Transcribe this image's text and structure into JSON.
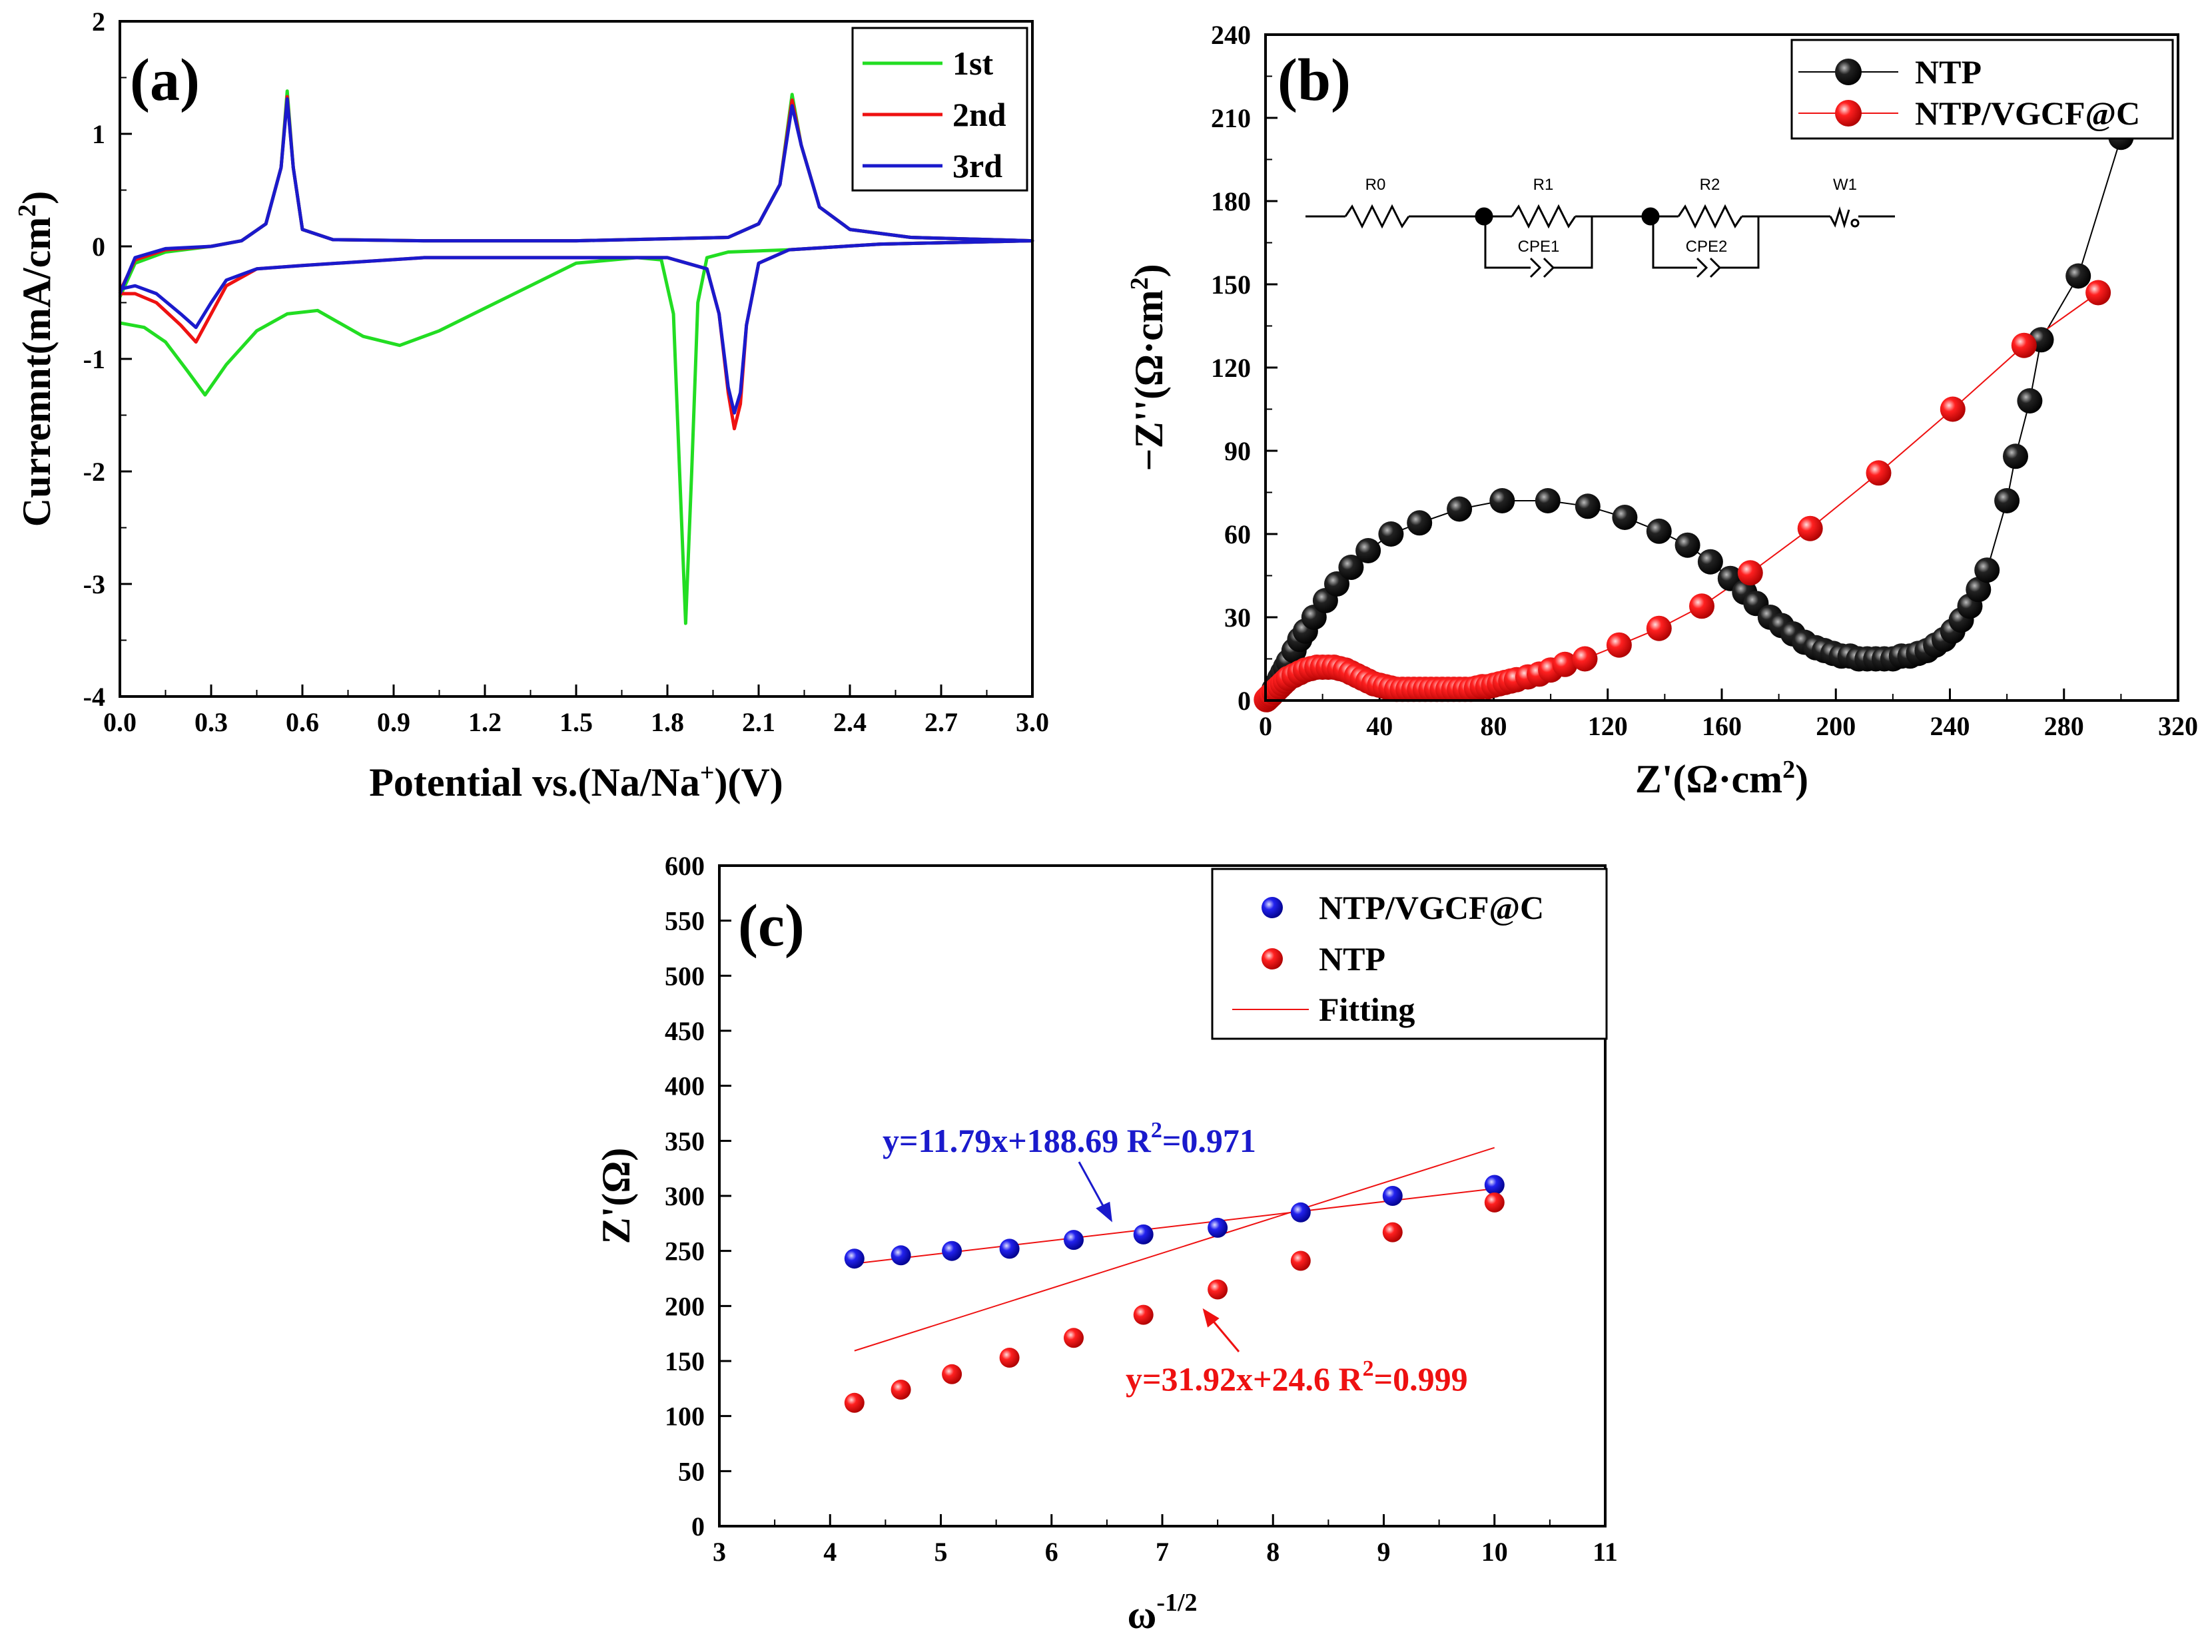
{
  "figure": {
    "colors": {
      "green": "#22dd22",
      "red": "#ee1111",
      "blue": "#1a1acc",
      "black": "#000000"
    }
  },
  "chart_data": [
    {
      "id": "a",
      "panel_label": "(a)",
      "type": "line",
      "xlabel_parts": [
        "Potential vs.(Na/Na",
        "+",
        ")(V)"
      ],
      "ylabel_parts": [
        "Curremnt(mA/cm",
        "2",
        ")"
      ],
      "xlim": [
        0.0,
        3.0
      ],
      "ylim": [
        -4,
        2
      ],
      "xticks": [
        "0.0",
        "0.3",
        "0.6",
        "0.9",
        "1.2",
        "1.5",
        "1.8",
        "2.1",
        "2.4",
        "2.7",
        "3.0"
      ],
      "yticks": [
        "-4",
        "-3",
        "-2",
        "-1",
        "0",
        "1",
        "2"
      ],
      "legend": [
        "1st",
        "2nd",
        "3rd"
      ],
      "series": [
        {
          "name": "1st",
          "color": "#22dd22",
          "oxidation": [
            [
              0.0,
              -0.45
            ],
            [
              0.05,
              -0.15
            ],
            [
              0.15,
              -0.05
            ],
            [
              0.3,
              0.0
            ],
            [
              0.4,
              0.05
            ],
            [
              0.48,
              0.2
            ],
            [
              0.53,
              0.7
            ],
            [
              0.55,
              1.38
            ],
            [
              0.57,
              0.7
            ],
            [
              0.6,
              0.15
            ],
            [
              0.7,
              0.06
            ],
            [
              1.0,
              0.05
            ],
            [
              1.5,
              0.05
            ],
            [
              2.0,
              0.08
            ],
            [
              2.1,
              0.2
            ],
            [
              2.17,
              0.55
            ],
            [
              2.21,
              1.35
            ],
            [
              2.24,
              0.9
            ],
            [
              2.3,
              0.35
            ],
            [
              2.4,
              0.15
            ],
            [
              2.6,
              0.08
            ],
            [
              3.0,
              0.05
            ]
          ],
          "reduction": [
            [
              3.0,
              0.05
            ],
            [
              2.5,
              0.02
            ],
            [
              2.2,
              -0.03
            ],
            [
              2.0,
              -0.05
            ],
            [
              1.93,
              -0.1
            ],
            [
              1.9,
              -0.5
            ],
            [
              1.88,
              -2.0
            ],
            [
              1.86,
              -3.35
            ],
            [
              1.84,
              -2.0
            ],
            [
              1.82,
              -0.6
            ],
            [
              1.78,
              -0.12
            ],
            [
              1.7,
              -0.1
            ],
            [
              1.5,
              -0.15
            ],
            [
              1.2,
              -0.55
            ],
            [
              1.05,
              -0.75
            ],
            [
              0.92,
              -0.88
            ],
            [
              0.8,
              -0.8
            ],
            [
              0.65,
              -0.57
            ],
            [
              0.55,
              -0.6
            ],
            [
              0.45,
              -0.75
            ],
            [
              0.35,
              -1.05
            ],
            [
              0.28,
              -1.32
            ],
            [
              0.22,
              -1.1
            ],
            [
              0.15,
              -0.85
            ],
            [
              0.08,
              -0.72
            ],
            [
              0.0,
              -0.68
            ]
          ]
        },
        {
          "name": "2nd",
          "color": "#ee1111",
          "oxidation": [
            [
              0.0,
              -0.4
            ],
            [
              0.05,
              -0.12
            ],
            [
              0.15,
              -0.03
            ],
            [
              0.3,
              0.0
            ],
            [
              0.4,
              0.05
            ],
            [
              0.48,
              0.2
            ],
            [
              0.53,
              0.7
            ],
            [
              0.55,
              1.33
            ],
            [
              0.57,
              0.7
            ],
            [
              0.6,
              0.15
            ],
            [
              0.7,
              0.06
            ],
            [
              1.0,
              0.05
            ],
            [
              1.5,
              0.05
            ],
            [
              2.0,
              0.08
            ],
            [
              2.1,
              0.2
            ],
            [
              2.17,
              0.55
            ],
            [
              2.21,
              1.3
            ],
            [
              2.24,
              0.9
            ],
            [
              2.3,
              0.35
            ],
            [
              2.4,
              0.15
            ],
            [
              2.6,
              0.08
            ],
            [
              3.0,
              0.05
            ]
          ],
          "reduction": [
            [
              3.0,
              0.05
            ],
            [
              2.5,
              0.02
            ],
            [
              2.2,
              -0.03
            ],
            [
              2.1,
              -0.15
            ],
            [
              2.06,
              -0.7
            ],
            [
              2.04,
              -1.4
            ],
            [
              2.02,
              -1.62
            ],
            [
              2.0,
              -1.3
            ],
            [
              1.97,
              -0.6
            ],
            [
              1.93,
              -0.2
            ],
            [
              1.8,
              -0.1
            ],
            [
              1.5,
              -0.1
            ],
            [
              1.0,
              -0.1
            ],
            [
              0.6,
              -0.17
            ],
            [
              0.45,
              -0.2
            ],
            [
              0.35,
              -0.35
            ],
            [
              0.3,
              -0.6
            ],
            [
              0.25,
              -0.85
            ],
            [
              0.2,
              -0.7
            ],
            [
              0.12,
              -0.5
            ],
            [
              0.05,
              -0.42
            ],
            [
              0.0,
              -0.42
            ]
          ]
        },
        {
          "name": "3rd",
          "color": "#1a1acc",
          "oxidation": [
            [
              0.0,
              -0.42
            ],
            [
              0.05,
              -0.1
            ],
            [
              0.15,
              -0.02
            ],
            [
              0.3,
              0.0
            ],
            [
              0.4,
              0.05
            ],
            [
              0.48,
              0.2
            ],
            [
              0.53,
              0.7
            ],
            [
              0.55,
              1.31
            ],
            [
              0.57,
              0.7
            ],
            [
              0.6,
              0.15
            ],
            [
              0.7,
              0.06
            ],
            [
              1.0,
              0.05
            ],
            [
              1.5,
              0.05
            ],
            [
              2.0,
              0.08
            ],
            [
              2.1,
              0.2
            ],
            [
              2.17,
              0.55
            ],
            [
              2.21,
              1.25
            ],
            [
              2.24,
              0.9
            ],
            [
              2.3,
              0.35
            ],
            [
              2.4,
              0.15
            ],
            [
              2.6,
              0.08
            ],
            [
              3.0,
              0.05
            ]
          ],
          "reduction": [
            [
              3.0,
              0.05
            ],
            [
              2.5,
              0.02
            ],
            [
              2.2,
              -0.03
            ],
            [
              2.1,
              -0.15
            ],
            [
              2.06,
              -0.7
            ],
            [
              2.04,
              -1.3
            ],
            [
              2.02,
              -1.48
            ],
            [
              2.0,
              -1.25
            ],
            [
              1.97,
              -0.6
            ],
            [
              1.93,
              -0.2
            ],
            [
              1.8,
              -0.1
            ],
            [
              1.5,
              -0.1
            ],
            [
              1.0,
              -0.1
            ],
            [
              0.6,
              -0.17
            ],
            [
              0.45,
              -0.2
            ],
            [
              0.35,
              -0.3
            ],
            [
              0.3,
              -0.5
            ],
            [
              0.25,
              -0.72
            ],
            [
              0.2,
              -0.6
            ],
            [
              0.12,
              -0.42
            ],
            [
              0.05,
              -0.35
            ],
            [
              0.0,
              -0.38
            ]
          ]
        }
      ]
    },
    {
      "id": "b",
      "panel_label": "(b)",
      "type": "scatter",
      "xlabel_parts": [
        "Z'(Ω·cm",
        "2",
        ")"
      ],
      "ylabel_parts": [
        "−Z''(Ω·cm",
        "2",
        ")"
      ],
      "xlim": [
        0,
        320
      ],
      "ylim": [
        0,
        240
      ],
      "xticks": [
        "0",
        "40",
        "80",
        "120",
        "160",
        "200",
        "240",
        "280",
        "320"
      ],
      "yticks": [
        "0",
        "30",
        "60",
        "90",
        "120",
        "150",
        "180",
        "210",
        "240"
      ],
      "legend": [
        "NTP",
        "NTP/VGCF@C"
      ],
      "circuit_labels": [
        "R0",
        "R1",
        "R2",
        "W1",
        "CPE1",
        "CPE2"
      ],
      "series": [
        {
          "name": "NTP",
          "color": "#000000",
          "x": [
            0.5,
            1,
            2,
            3,
            4,
            5,
            6,
            7,
            8,
            10,
            12,
            14,
            17,
            21,
            25,
            30,
            36,
            44,
            54,
            68,
            83,
            99,
            113,
            126,
            138,
            148,
            156,
            163,
            168,
            172,
            177,
            181,
            185,
            189,
            193,
            196,
            199,
            202,
            205,
            208,
            211,
            214,
            217,
            220,
            223,
            226,
            229,
            232,
            235,
            238,
            241,
            244,
            247,
            250,
            253,
            260,
            263,
            268,
            272,
            285,
            300
          ],
          "y": [
            0.5,
            1,
            2,
            4,
            6,
            8,
            10,
            12,
            14,
            18,
            22,
            25,
            30,
            36,
            42,
            48,
            54,
            60,
            64,
            69,
            72,
            72,
            70,
            66,
            61,
            56,
            50,
            44,
            39,
            35,
            30,
            27,
            24,
            21,
            19,
            18,
            17,
            16,
            16,
            15,
            15,
            15,
            15,
            15,
            16,
            16,
            17,
            18,
            20,
            22,
            25,
            29,
            34,
            40,
            47,
            72,
            88,
            108,
            130,
            153,
            203
          ]
        },
        {
          "name": "NTP/VGCF@C",
          "color": "#ee1111",
          "x": [
            0.3,
            0.6,
            1,
            1.5,
            2,
            3,
            4,
            5,
            6,
            7,
            8,
            10,
            12,
            14,
            16,
            18,
            20,
            22,
            24,
            26,
            28,
            30,
            32,
            34,
            36,
            38,
            40,
            42,
            44,
            46,
            48,
            50,
            52,
            54,
            56,
            58,
            60,
            62,
            64,
            66,
            68,
            70,
            72,
            74,
            76,
            78,
            80,
            82,
            84,
            86,
            88,
            92,
            96,
            100,
            105,
            112,
            124,
            138,
            153,
            170,
            191,
            215,
            241,
            266,
            292
          ],
          "y": [
            0.3,
            0.6,
            1,
            1.5,
            2,
            3,
            4,
            5,
            6,
            7,
            8,
            9,
            10,
            11,
            11.5,
            12,
            12,
            12,
            12,
            11.5,
            11,
            10,
            9,
            8,
            7,
            6,
            5.5,
            5,
            4.5,
            4,
            4,
            4,
            4,
            4,
            4,
            4,
            4,
            4,
            4,
            4,
            4,
            4,
            4,
            4.5,
            5,
            5,
            5.5,
            6,
            6.5,
            7,
            7.5,
            8.5,
            9.5,
            11,
            13,
            15,
            20,
            26,
            34,
            46,
            62,
            82,
            105,
            128,
            147
          ]
        }
      ]
    },
    {
      "id": "c",
      "panel_label": "(c)",
      "type": "scatter",
      "xlabel_parts": [
        "ω",
        "-1/2",
        ""
      ],
      "ylabel_parts": [
        "Z'(Ω)",
        "",
        ""
      ],
      "xlim": [
        3,
        11
      ],
      "ylim": [
        0,
        600
      ],
      "xticks": [
        "3",
        "4",
        "5",
        "6",
        "7",
        "8",
        "9",
        "10",
        "11"
      ],
      "yticks": [
        "0",
        "50",
        "100",
        "150",
        "200",
        "250",
        "300",
        "350",
        "400",
        "450",
        "500",
        "550",
        "600"
      ],
      "legend": [
        "NTP/VGCF@C",
        "NTP",
        "Fitting"
      ],
      "series": [
        {
          "name": "NTP/VGCF@C",
          "color": "#1a1acc",
          "x": [
            4.22,
            4.64,
            5.1,
            5.62,
            6.2,
            6.83,
            7.5,
            8.25,
            9.08,
            10.0
          ],
          "y": [
            243,
            246,
            250,
            252,
            260,
            265,
            271,
            285,
            300,
            310
          ],
          "fit": {
            "slope": 11.79,
            "intercept": 188.69,
            "r2": 0.971
          },
          "equation": {
            "main": "y=11.79x+188.69 R",
            "sup": "2",
            "tail": "=0.971"
          }
        },
        {
          "name": "NTP",
          "color": "#ee1111",
          "x": [
            4.22,
            4.64,
            5.1,
            5.62,
            6.2,
            6.83,
            7.5,
            8.25,
            9.08,
            10.0
          ],
          "y": [
            112,
            124,
            138,
            153,
            171,
            192,
            215,
            241,
            267,
            294
          ],
          "fit": {
            "slope": 31.92,
            "intercept": 24.6,
            "r2": 0.999
          },
          "equation": {
            "main": "y=31.92x+24.6 R",
            "sup": "2",
            "tail": "=0.999"
          }
        }
      ]
    }
  ]
}
